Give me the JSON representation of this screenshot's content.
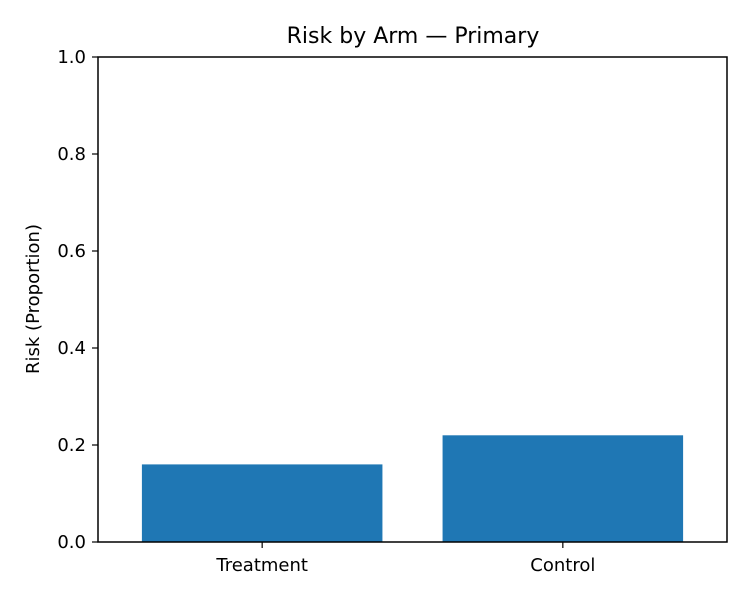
{
  "chart_data": {
    "type": "bar",
    "title": "Risk by Arm — Primary",
    "xlabel": "",
    "ylabel": "Risk (Proportion)",
    "categories": [
      "Treatment",
      "Control"
    ],
    "values": [
      0.16,
      0.22
    ],
    "ylim": [
      0,
      1.0
    ],
    "yticks": [
      "0.0",
      "0.2",
      "0.4",
      "0.6",
      "0.8",
      "1.0"
    ],
    "grid": false,
    "legend": "none",
    "bar_color": "#1f77b4"
  }
}
